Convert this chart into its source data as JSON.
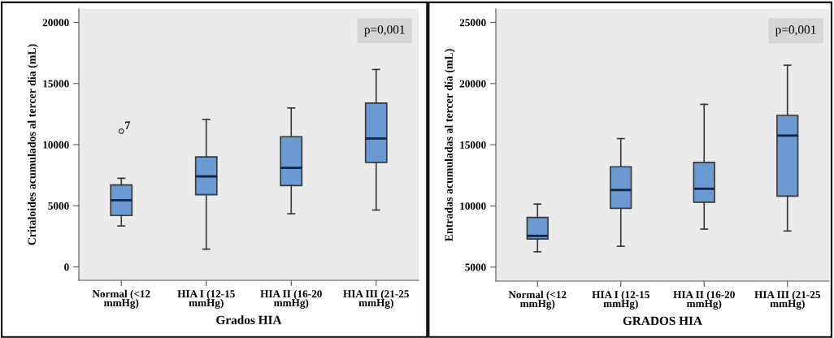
{
  "chart_data": [
    {
      "type": "box",
      "xlabel": "Grados HIA",
      "ylabel": "Critaloides acumulados al tercer día (mL)",
      "categories": [
        "Normal (<12\nmmHg)",
        "HIA I (12-15\nmmHg)",
        "HIA II (16-20\nmmHg)",
        "HIA III (21-25\nmmHg)"
      ],
      "boxes": [
        {
          "low": 3350,
          "q1": 4200,
          "median": 5450,
          "q3": 6700,
          "high": 7250,
          "outliers": [
            11100
          ]
        },
        {
          "low": 1450,
          "q1": 5900,
          "median": 7400,
          "q3": 9000,
          "high": 12050
        },
        {
          "low": 4350,
          "q1": 6650,
          "median": 8100,
          "q3": 10650,
          "high": 13000
        },
        {
          "low": 4650,
          "q1": 8550,
          "median": 10500,
          "q3": 13400,
          "high": 16150
        }
      ],
      "color": "#6b99d1",
      "ylim": [
        -1100,
        21100
      ],
      "yticks": [
        0,
        5000,
        10000,
        15000,
        20000
      ],
      "grid": false,
      "annotations": [
        "p=0,001",
        "7"
      ]
    },
    {
      "type": "box",
      "xlabel": "GRADOS HIA",
      "ylabel": "Entradas acumuladas al tercer día (mL)",
      "categories": [
        "Normal (<12\nmmHg)",
        "HIA I (12-15\nmmHg)",
        "HIA II (16-20\nmmHg)",
        "HIA III (21-25\nmmHg)"
      ],
      "boxes": [
        {
          "low": 6250,
          "q1": 7300,
          "median": 7550,
          "q3": 9050,
          "high": 10150
        },
        {
          "low": 6700,
          "q1": 9800,
          "median": 11300,
          "q3": 13200,
          "high": 15500
        },
        {
          "low": 8100,
          "q1": 10300,
          "median": 11400,
          "q3": 13550,
          "high": 18300
        },
        {
          "low": 7950,
          "q1": 10800,
          "median": 15750,
          "q3": 17400,
          "high": 21500
        }
      ],
      "color": "#6b99d1",
      "ylim": [
        3850,
        26100
      ],
      "yticks": [
        5000,
        10000,
        15000,
        20000,
        25000
      ],
      "grid": false,
      "annotations": [
        "p=0,001"
      ]
    }
  ]
}
